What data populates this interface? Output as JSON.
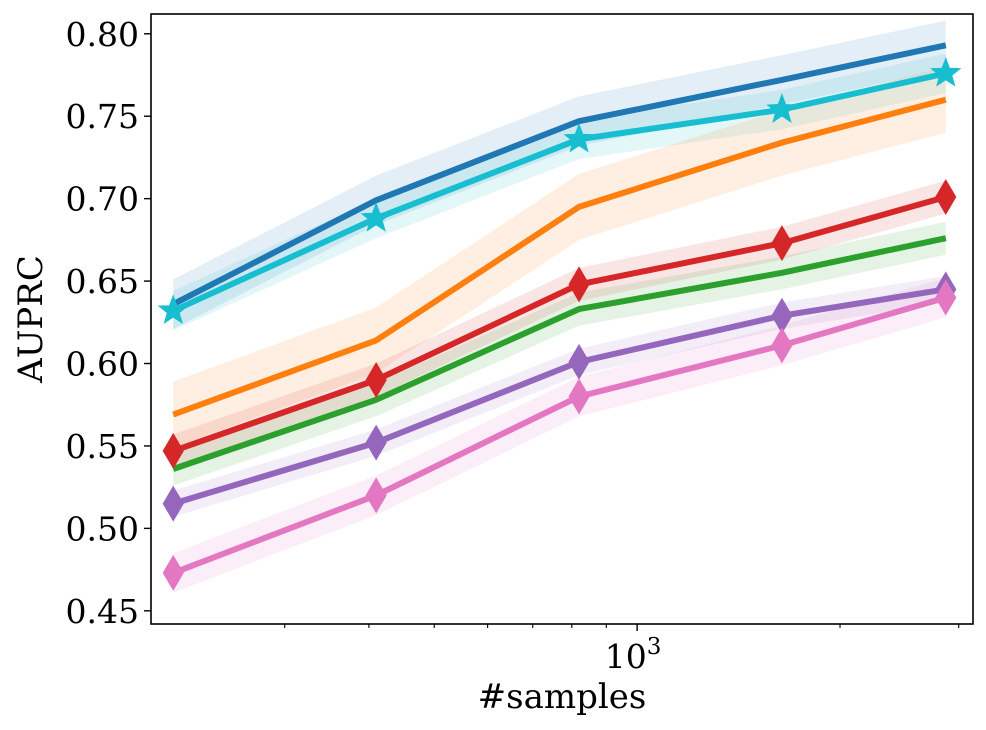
{
  "chart_data": {
    "type": "line",
    "title": "",
    "xlabel": "#samples",
    "ylabel": "AUPRC",
    "xscale": "log",
    "xlim": [
      190,
      3150
    ],
    "ylim": [
      0.442,
      0.812
    ],
    "x": [
      205,
      410,
      820,
      1640,
      2870
    ],
    "y_ticks": [
      0.45,
      0.5,
      0.55,
      0.6,
      0.65,
      0.7,
      0.75,
      0.8
    ],
    "y_tick_labels": [
      "0.45",
      "0.50",
      "0.55",
      "0.60",
      "0.65",
      "0.70",
      "0.75",
      "0.80"
    ],
    "x_major_ticks": [
      1000
    ],
    "x_major_tick_labels": [
      {
        "base": "10",
        "exp": "3"
      }
    ],
    "x_minor_ticks": [
      300,
      400,
      500,
      600,
      700,
      800,
      900,
      2000,
      3000
    ],
    "series": [
      {
        "name": "blue",
        "color": "#1f77b4",
        "marker": "none",
        "values": [
          0.636,
          0.699,
          0.747,
          0.772,
          0.793
        ],
        "band": 0.015
      },
      {
        "name": "cyan",
        "color": "#17becf",
        "marker": "star",
        "values": [
          0.632,
          0.688,
          0.736,
          0.754,
          0.776
        ],
        "band": 0.012
      },
      {
        "name": "orange",
        "color": "#ff7f0e",
        "marker": "none",
        "values": [
          0.569,
          0.614,
          0.695,
          0.734,
          0.76
        ],
        "band": 0.02
      },
      {
        "name": "red",
        "color": "#d62728",
        "marker": "diamond",
        "values": [
          0.547,
          0.59,
          0.648,
          0.673,
          0.701
        ],
        "band": 0.01
      },
      {
        "name": "green",
        "color": "#2ca02c",
        "marker": "none",
        "values": [
          0.536,
          0.578,
          0.633,
          0.655,
          0.676
        ],
        "band": 0.01
      },
      {
        "name": "purple",
        "color": "#9467bd",
        "marker": "diamond",
        "values": [
          0.515,
          0.552,
          0.601,
          0.629,
          0.645
        ],
        "band": 0.008
      },
      {
        "name": "pink",
        "color": "#e377c2",
        "marker": "diamond",
        "values": [
          0.473,
          0.52,
          0.58,
          0.611,
          0.64
        ],
        "band": 0.012
      }
    ]
  }
}
